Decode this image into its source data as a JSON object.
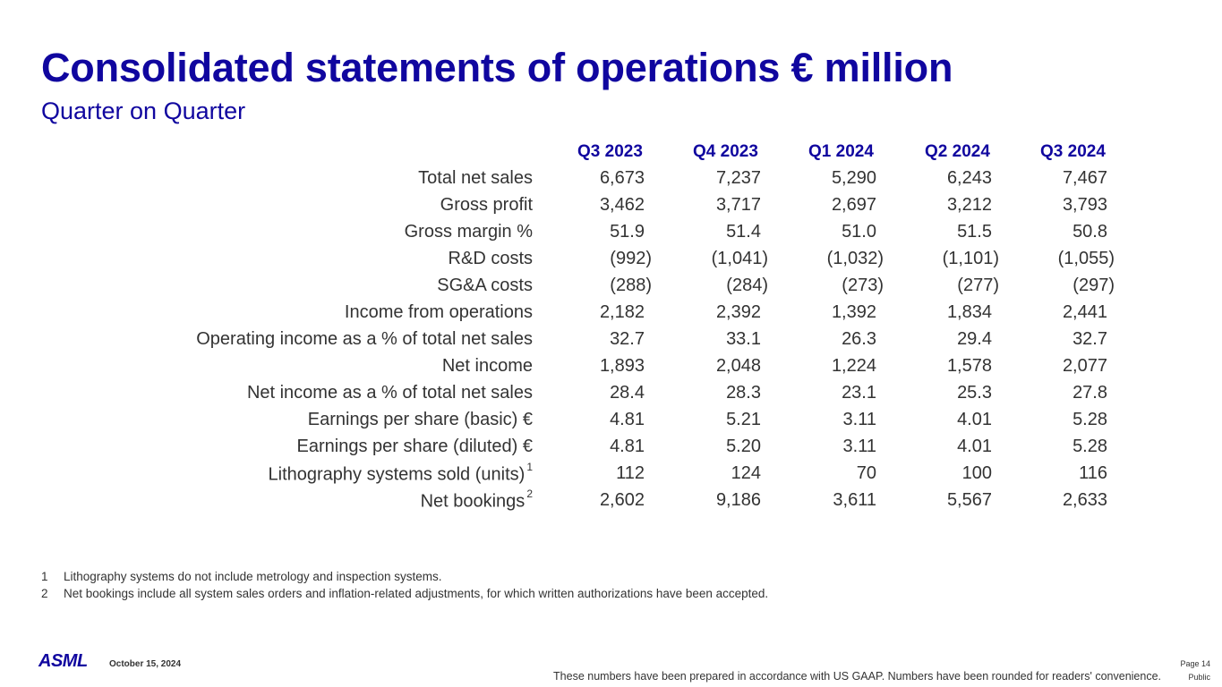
{
  "title": "Consolidated statements of operations € million",
  "subtitle": "Quarter on Quarter",
  "columns": [
    "Q3 2023",
    "Q4 2023",
    "Q1 2024",
    "Q2 2024",
    "Q3 2024"
  ],
  "rows": [
    {
      "label": "Total net sales",
      "sup": "",
      "values": [
        "6,673",
        "7,237",
        "5,290",
        "6,243",
        "7,467"
      ]
    },
    {
      "label": "Gross profit",
      "sup": "",
      "values": [
        "3,462",
        "3,717",
        "2,697",
        "3,212",
        "3,793"
      ]
    },
    {
      "label": "Gross margin %",
      "sup": "",
      "values": [
        "51.9",
        "51.4",
        "51.0",
        "51.5",
        "50.8"
      ]
    },
    {
      "label": "R&D costs",
      "sup": "",
      "values": [
        "(992)",
        "(1,041)",
        "(1,032)",
        "(1,101)",
        "(1,055)"
      ]
    },
    {
      "label": "SG&A costs",
      "sup": "",
      "values": [
        "(288)",
        "(284)",
        "(273)",
        "(277)",
        "(297)"
      ]
    },
    {
      "label": "Income from operations",
      "sup": "",
      "values": [
        "2,182",
        "2,392",
        "1,392",
        "1,834",
        "2,441"
      ]
    },
    {
      "label": "Operating income as a % of total net sales",
      "sup": "",
      "values": [
        "32.7",
        "33.1",
        "26.3",
        "29.4",
        "32.7"
      ]
    },
    {
      "label": "Net income",
      "sup": "",
      "values": [
        "1,893",
        "2,048",
        "1,224",
        "1,578",
        "2,077"
      ]
    },
    {
      "label": "Net income as a % of total net sales",
      "sup": "",
      "values": [
        "28.4",
        "28.3",
        "23.1",
        "25.3",
        "27.8"
      ]
    },
    {
      "label": "Earnings per share (basic) €",
      "sup": "",
      "values": [
        "4.81",
        "5.21",
        "3.11",
        "4.01",
        "5.28"
      ]
    },
    {
      "label": "Earnings per share (diluted) €",
      "sup": "",
      "values": [
        "4.81",
        "5.20",
        "3.11",
        "4.01",
        "5.28"
      ]
    },
    {
      "label": "Lithography systems sold (units)",
      "sup": "1",
      "values": [
        "112",
        "124",
        "70",
        "100",
        "116"
      ]
    },
    {
      "label": "Net bookings",
      "sup": "2",
      "values": [
        "2,602",
        "9,186",
        "3,611",
        "5,567",
        "2,633"
      ]
    }
  ],
  "footnotes": [
    {
      "num": "1",
      "text": "Lithography systems do not include metrology and inspection systems."
    },
    {
      "num": "2",
      "text": "Net bookings include all system sales orders and inflation-related adjustments, for which written authorizations have been accepted."
    }
  ],
  "footer": {
    "logo": "ASML",
    "date": "October 15, 2024",
    "disclaimer": "These numbers have been prepared in accordance with US GAAP.  Numbers have been rounded for readers' convenience.",
    "page": "Page 14",
    "classification": "Public"
  },
  "colors": {
    "brand": "#10069f",
    "text": "#333333"
  }
}
